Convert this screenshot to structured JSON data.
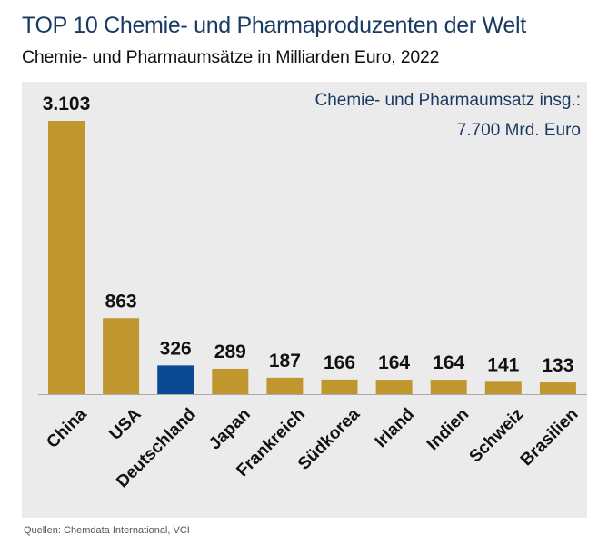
{
  "chart_data": {
    "type": "bar",
    "title": "TOP 10 Chemie- und Pharmaproduzenten der Welt",
    "subtitle": "Chemie- und Pharmaumsätze in Milliarden Euro, 2022",
    "annotation_line1": "Chemie- und Pharmaumsatz insg.:",
    "annotation_line2": "7.700 Mrd. Euro",
    "source": "Quellen: Chemdata International, VCI",
    "categories": [
      "China",
      "USA",
      "Deutschland",
      "Japan",
      "Frankreich",
      "Südkorea",
      "Irland",
      "Indien",
      "Schweiz",
      "Brasilien"
    ],
    "values": [
      3103,
      863,
      326,
      289,
      187,
      166,
      164,
      164,
      141,
      133
    ],
    "value_labels": [
      "3.103",
      "863",
      "326",
      "289",
      "187",
      "166",
      "164",
      "164",
      "141",
      "133"
    ],
    "highlight": "Deutschland",
    "colors": {
      "default": "#c0962e",
      "highlight": "#0a4a94",
      "background": "#ebebeb",
      "title": "#1a3a63"
    },
    "xlabel": "",
    "ylabel": "",
    "ylim": [
      0,
      3103
    ],
    "grid": false,
    "legend": "none"
  }
}
